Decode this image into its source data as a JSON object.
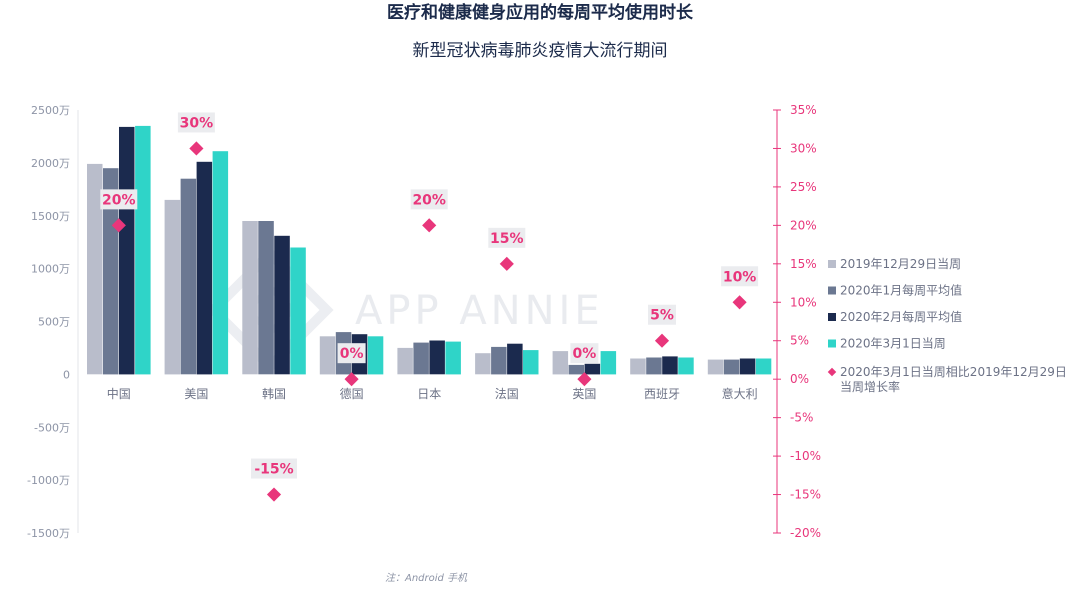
{
  "chart_data": {
    "type": "bar",
    "title": "医疗和健康健身应用的每周平均使用时长",
    "subtitle": "新型冠状病毒肺炎疫情大流行期间",
    "categories": [
      "中国",
      "美国",
      "韩国",
      "德国",
      "日本",
      "法国",
      "英国",
      "西班牙",
      "意大利"
    ],
    "series": [
      {
        "name": "2019年12月29日当周",
        "color": "#b9bdcb",
        "values": [
          1990,
          1650,
          1450,
          360,
          250,
          200,
          220,
          150,
          140
        ]
      },
      {
        "name": "2020年1月每周平均值",
        "color": "#6b7892",
        "values": [
          1950,
          1850,
          1450,
          400,
          300,
          260,
          90,
          160,
          140
        ]
      },
      {
        "name": "2020年2月每周平均值",
        "color": "#1b2a4e",
        "values": [
          2340,
          2010,
          1310,
          380,
          320,
          290,
          100,
          170,
          150
        ]
      },
      {
        "name": "2020年3月1日当周",
        "color": "#2fd4c8",
        "values": [
          2350,
          2110,
          1200,
          360,
          310,
          230,
          220,
          160,
          150
        ]
      }
    ],
    "growth_series": {
      "name": "2020年3月1日当周相比2019年12月29日",
      "name_line2": "当周增长率",
      "color": "#e8367b",
      "values": [
        20,
        30,
        -15,
        0,
        20,
        15,
        0,
        5,
        10
      ],
      "labels": [
        "20%",
        "30%",
        "-15%",
        "0%",
        "20%",
        "15%",
        "0%",
        "5%",
        "10%"
      ]
    },
    "y_left": {
      "min": -1500,
      "max": 2500,
      "step": 500,
      "tick_labels": [
        "-1500万",
        "-1000万",
        "-500万",
        "0",
        "500万",
        "1000万",
        "1500万",
        "2000万",
        "2500万"
      ]
    },
    "y_right": {
      "min": -20,
      "max": 35,
      "step": 5,
      "tick_labels": [
        "-20%",
        "-15%",
        "-10%",
        "-5%",
        "0%",
        "5%",
        "10%",
        "15%",
        "20%",
        "25%",
        "30%",
        "35%"
      ]
    },
    "grid": false,
    "legend_position": "right"
  },
  "watermark": "APP ANNIE",
  "note": "注：Android 手机"
}
